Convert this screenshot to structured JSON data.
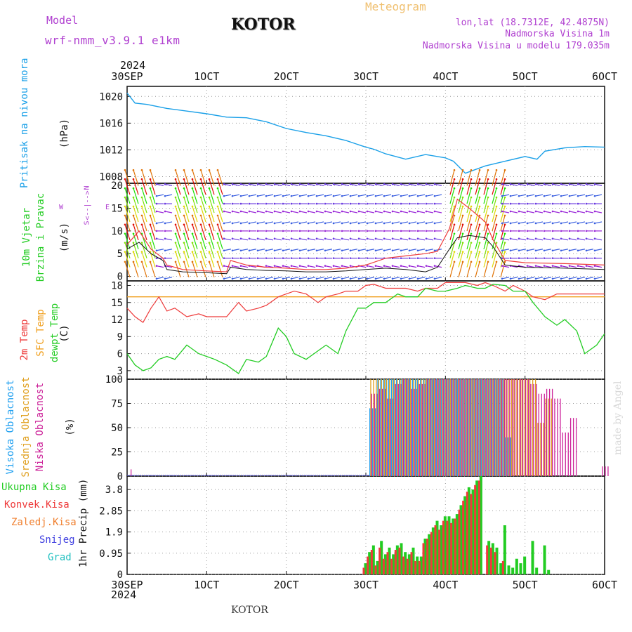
{
  "header": {
    "model_label": "Model",
    "model_name": "wrf-nmm_v3.9.1 e1km",
    "title": "KOTOR",
    "meteogram": "Meteogram",
    "lonlat": "lon,lat (18.7312E, 42.4875N)",
    "elevation": "Nadmorska Visina 1m",
    "model_elevation": "Nadmorska Visina u modelu 179.035m",
    "year_top": "2024",
    "year_bottom": "2024",
    "footer": "KOTOR",
    "credit": "made by Angel"
  },
  "colors": {
    "pressure": "#1aa0e8",
    "temp2m": "#ee3a3a",
    "sfc": "#f0a020",
    "dew": "#22cc22",
    "high_cloud": "#20a0f0",
    "mid_cloud": "#e0a020",
    "low_cloud": "#cc2299",
    "total_precip": "#22cc22",
    "conv_precip": "#ee3a3a",
    "purple": "#b040d0"
  },
  "x_ticks": [
    "30SEP",
    "1OCT",
    "2OCT",
    "3OCT",
    "4OCT",
    "5OCT",
    "6OCT"
  ],
  "panels": {
    "pressure": {
      "labels": [
        "Pritisak na nivou mora"
      ],
      "unit": "(hPa)",
      "ticks": [
        "1008",
        "1012",
        "1016",
        "1020"
      ]
    },
    "wind": {
      "labels": [
        "10m Vjetar",
        "Brzina i Pravac"
      ],
      "unit": "(m/s)",
      "ticks": [
        "0",
        "5",
        "10",
        "15",
        "20"
      ],
      "compass_w": "W",
      "compass_e": "E",
      "compass_n": "N",
      "compass_s": "S",
      "compass_arrow": "<--|-->"
    },
    "temp": {
      "labels": [
        "2m Temp",
        "SFC Temp",
        "dewpt Temp"
      ],
      "unit": "(C)",
      "ticks": [
        "3",
        "6",
        "9",
        "12",
        "15",
        "18"
      ]
    },
    "cloud": {
      "labels": [
        "Visoka Oblacnost",
        "Srednja Oblacnost",
        "Niska Oblacnost"
      ],
      "unit": "(%)",
      "ticks": [
        "0",
        "25",
        "50",
        "75",
        "100"
      ]
    },
    "precip": {
      "labels": [
        "Ukupna Kisa",
        "Konvek.Kisa",
        "Zaledj.Kisa",
        "Snijeg",
        "Grad"
      ],
      "unit": "1hr Precip (mm)",
      "ticks": [
        "0",
        "0.95",
        "1.9",
        "2.85",
        "3.8"
      ]
    }
  },
  "chart_data": [
    {
      "type": "line",
      "title": "",
      "ylabel": "Pritisak na nivou mora (hPa)",
      "ylim": [
        1007,
        1021.5
      ],
      "x": [
        0,
        0.1,
        0.25,
        0.5,
        0.75,
        1.0,
        1.25,
        1.5,
        1.75,
        2.0,
        2.25,
        2.5,
        2.75,
        3.0,
        3.1,
        3.25,
        3.5,
        3.75,
        4.0,
        4.1,
        4.25,
        4.5,
        4.75,
        5.0,
        5.15,
        5.25,
        5.5,
        5.75,
        6.0
      ],
      "series": [
        {
          "values": [
            1020.5,
            1019.0,
            1018.8,
            1018.2,
            1017.8,
            1017.4,
            1016.9,
            1016.8,
            1016.2,
            1015.2,
            1014.6,
            1014.1,
            1013.4,
            1012.4,
            1012.1,
            1011.4,
            1010.6,
            1011.3,
            1010.8,
            1010.3,
            1008.5,
            1009.6,
            1010.3,
            1011.0,
            1010.6,
            1011.8,
            1012.3,
            1012.5,
            1012.4
          ]
        }
      ],
      "grid": true
    },
    {
      "type": "line",
      "title": "",
      "ylabel": "10m Vjetar Brzina i Pravac (m/s)",
      "ylim": [
        -1,
        20.5
      ],
      "x": [
        0,
        0.15,
        0.3,
        0.45,
        0.5,
        0.7,
        1.0,
        1.25,
        1.3,
        1.5,
        1.75,
        2.0,
        2.25,
        2.5,
        2.75,
        3.0,
        3.25,
        3.5,
        3.75,
        3.9,
        4.05,
        4.15,
        4.3,
        4.5,
        4.6,
        4.75,
        5.0,
        5.5,
        6.0
      ],
      "series": [
        {
          "values": [
            6.0,
            7.5,
            5.0,
            3.5,
            1.5,
            1.0,
            0.8,
            0.6,
            2.0,
            1.5,
            1.3,
            1.2,
            1.0,
            1.0,
            1.2,
            1.5,
            1.8,
            1.5,
            1.0,
            2.0,
            6.0,
            8.5,
            9.0,
            8.5,
            6.5,
            2.5,
            2.0,
            1.8,
            1.5
          ]
        },
        {
          "values": [
            7.0,
            10.0,
            6.0,
            4.0,
            2.5,
            1.5,
            1.2,
            1.0,
            3.5,
            2.5,
            2.0,
            1.8,
            1.5,
            1.5,
            1.8,
            2.5,
            4.0,
            4.5,
            5.0,
            5.5,
            10.5,
            17.0,
            15.0,
            12.0,
            8.0,
            3.5,
            3.0,
            2.8,
            2.5
          ]
        }
      ],
      "grid": true
    },
    {
      "type": "line",
      "title": "",
      "ylabel": "Temperatura (C)",
      "ylim": [
        1.5,
        18.8
      ],
      "x": [
        0,
        0.1,
        0.2,
        0.3,
        0.4,
        0.5,
        0.6,
        0.75,
        0.9,
        1.0,
        1.1,
        1.25,
        1.4,
        1.5,
        1.65,
        1.75,
        1.9,
        2.0,
        2.1,
        2.25,
        2.4,
        2.5,
        2.65,
        2.75,
        2.9,
        3.0,
        3.1,
        3.25,
        3.4,
        3.5,
        3.65,
        3.75,
        3.9,
        4.0,
        4.15,
        4.25,
        4.4,
        4.5,
        4.6,
        4.75,
        4.85,
        5.0,
        5.1,
        5.25,
        5.4,
        5.5,
        5.65,
        5.75,
        5.9,
        6.0
      ],
      "series": [
        {
          "name": "2m Temp",
          "values": [
            14,
            12.5,
            11.5,
            14,
            16,
            13.5,
            14,
            12.5,
            13,
            12.5,
            12.5,
            12.5,
            15,
            13.5,
            14,
            14.5,
            16,
            16.5,
            17,
            16.5,
            15,
            16,
            16.5,
            17,
            17,
            18,
            18.2,
            17.5,
            17.5,
            17.5,
            17,
            17.5,
            17.5,
            18.5,
            18.5,
            18.5,
            18,
            18.5,
            18,
            17,
            18,
            17,
            16,
            15.5,
            16.5,
            16.5,
            16.5,
            16.5,
            16.5,
            16.5
          ]
        },
        {
          "name": "SFC Temp",
          "values": [
            16,
            16,
            16,
            16,
            16,
            16,
            16,
            16,
            16,
            16,
            16,
            16,
            16,
            16,
            16,
            16,
            16,
            16,
            16,
            16,
            16,
            16,
            16,
            16,
            16,
            16,
            16,
            16,
            16,
            16,
            16,
            16,
            16,
            16,
            16,
            16,
            16,
            16,
            16,
            16,
            16,
            16,
            16,
            16,
            16,
            16,
            16,
            16,
            16,
            16
          ]
        },
        {
          "name": "dewpt Temp",
          "values": [
            6,
            4,
            3,
            3.5,
            5,
            5.5,
            5,
            7.5,
            6,
            5.5,
            5,
            4,
            2.5,
            5,
            4.5,
            5.5,
            10.5,
            9,
            6,
            5,
            6.5,
            7.5,
            6,
            10,
            14,
            14,
            15,
            15,
            16.5,
            16,
            16,
            17.5,
            17,
            17,
            17.5,
            18,
            17.5,
            17.5,
            18.2,
            18,
            17,
            17,
            15,
            12.5,
            11,
            12,
            10,
            6,
            7.5,
            9.5
          ]
        }
      ],
      "grid": true
    },
    {
      "type": "bar",
      "title": "",
      "ylabel": "Oblacnost (%)",
      "ylim": [
        0,
        100
      ],
      "x": [
        3.05,
        3.15,
        3.25,
        3.35,
        3.45,
        3.55,
        3.65,
        3.75,
        3.85,
        3.95,
        4.05,
        4.15,
        4.25,
        4.35,
        4.45,
        4.55,
        4.65,
        4.75,
        4.85,
        4.95,
        5.05,
        5.15,
        5.25,
        5.35,
        5.45,
        5.55,
        5.95
      ],
      "series": [
        {
          "name": "Visoka Oblacnost",
          "values": [
            70,
            100,
            100,
            100,
            100,
            100,
            100,
            100,
            100,
            100,
            100,
            100,
            100,
            100,
            100,
            100,
            100,
            40,
            0,
            0,
            0,
            0,
            0,
            0,
            0,
            0,
            0
          ]
        },
        {
          "name": "Srednja Oblacnost",
          "values": [
            100,
            100,
            100,
            100,
            100,
            100,
            100,
            100,
            100,
            100,
            100,
            100,
            100,
            100,
            100,
            100,
            100,
            100,
            100,
            100,
            100,
            55,
            80,
            0,
            0,
            0,
            0
          ]
        },
        {
          "name": "Niska Oblacnost",
          "values": [
            85,
            90,
            80,
            95,
            100,
            90,
            95,
            100,
            100,
            100,
            100,
            100,
            100,
            100,
            100,
            100,
            100,
            100,
            100,
            100,
            95,
            85,
            90,
            80,
            45,
            60,
            10
          ]
        }
      ],
      "grid": true
    },
    {
      "type": "bar",
      "title": "",
      "ylabel": "1hr Precip (mm)",
      "ylim": [
        0,
        4.4
      ],
      "x": [
        3.0,
        3.05,
        3.1,
        3.15,
        3.2,
        3.25,
        3.3,
        3.35,
        3.4,
        3.45,
        3.5,
        3.55,
        3.6,
        3.65,
        3.7,
        3.75,
        3.8,
        3.85,
        3.9,
        3.95,
        4.0,
        4.05,
        4.1,
        4.15,
        4.2,
        4.25,
        4.3,
        4.35,
        4.4,
        4.45,
        4.5,
        4.55,
        4.6,
        4.65,
        4.7,
        4.75,
        4.8,
        4.85,
        4.9,
        4.95,
        5.0,
        5.05,
        5.1,
        5.15,
        5.2,
        5.25,
        5.3,
        5.35,
        5.4,
        5.45,
        5.5
      ],
      "series": [
        {
          "name": "Ukupna Kisa",
          "values": [
            0.5,
            1.0,
            1.3,
            0.6,
            1.5,
            0.9,
            1.2,
            0.9,
            1.3,
            1.4,
            1.0,
            0.9,
            1.2,
            0.8,
            0.8,
            1.6,
            1.8,
            2.1,
            2.4,
            2.2,
            2.6,
            2.6,
            2.5,
            2.7,
            3.1,
            3.5,
            3.9,
            3.8,
            4.2,
            4.4,
            0,
            1.5,
            1.4,
            1.2,
            0.5,
            2.2,
            0.4,
            0.3,
            0.7,
            0.5,
            0.8,
            0,
            1.5,
            0.3,
            0,
            1.3,
            0.2,
            0,
            0,
            0,
            0
          ]
        },
        {
          "name": "Konvek.Kisa",
          "values": [
            0.3,
            0.8,
            1.1,
            0.4,
            1.2,
            0.7,
            1.0,
            0.7,
            1.1,
            1.2,
            0.8,
            0.7,
            1.0,
            0.6,
            0.6,
            1.4,
            1.6,
            1.9,
            2.2,
            2.0,
            2.4,
            2.4,
            2.3,
            2.5,
            2.9,
            3.3,
            3.7,
            3.6,
            4.0,
            4.2,
            0,
            1.3,
            1.2,
            1.0,
            0,
            0.6,
            0,
            0,
            0,
            0,
            0,
            0,
            0,
            0,
            0,
            0,
            0,
            0,
            0,
            0,
            0
          ]
        }
      ],
      "grid": true
    }
  ]
}
